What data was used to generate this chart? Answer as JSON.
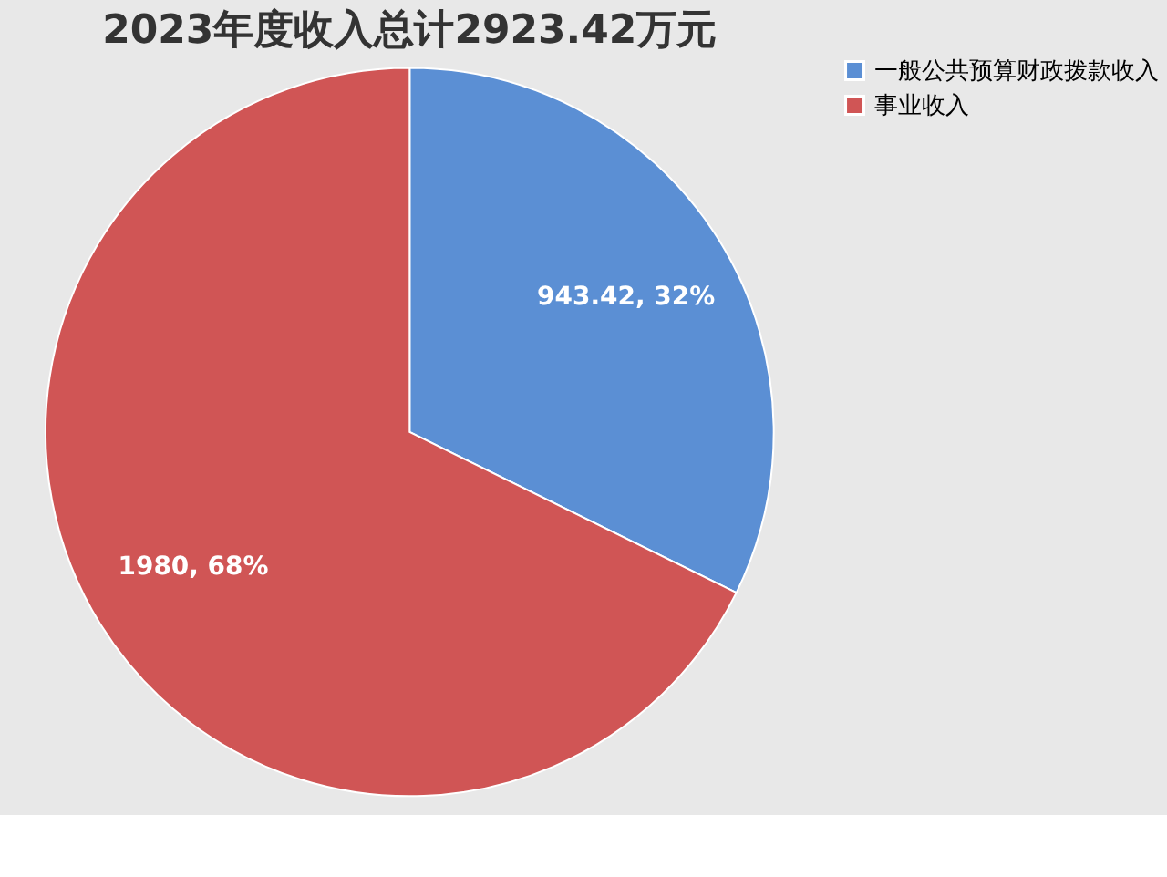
{
  "chart_data": {
    "type": "pie",
    "title": "2023年度收入总计2923.42万元",
    "categories": [
      "一般公共预算财政拨款收入",
      "事业收入"
    ],
    "values": [
      943.42,
      1980
    ],
    "colors": [
      "#5b8fd4",
      "#d05555"
    ],
    "value_labels": [
      "943.42, 32%",
      "1980, 68%"
    ],
    "legend": "right"
  }
}
